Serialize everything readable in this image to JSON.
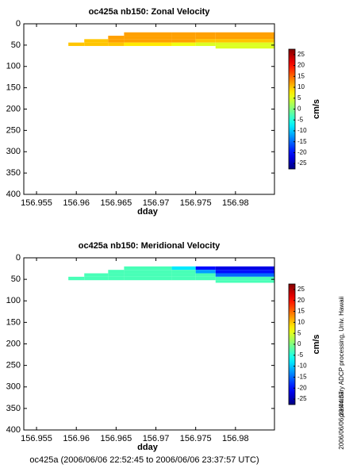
{
  "chart_data": [
    {
      "type": "heatmap",
      "title": "oc425a nb150: Zonal Velocity",
      "xlabel": "dday",
      "xlim": [
        156.9534,
        156.9849
      ],
      "xticks": [
        156.955,
        156.96,
        156.965,
        156.97,
        156.975,
        156.98
      ],
      "ylim": [
        0,
        400
      ],
      "yticks": [
        0,
        50,
        100,
        150,
        200,
        250,
        300,
        350,
        400
      ],
      "y_inverted": true,
      "clim": [
        -27.5,
        27.5
      ],
      "cticks": [
        25,
        20,
        15,
        10,
        5,
        0,
        -5,
        -10,
        -15,
        -20,
        -25
      ],
      "colorbar_label": "cm/s",
      "dday": [
        156.959,
        156.961,
        156.964,
        156.966,
        156.972,
        156.975,
        156.9775
      ],
      "depth_edges": [
        20,
        28,
        36,
        44,
        52,
        58
      ],
      "values": [
        [
          null,
          null,
          null,
          10,
          null
        ],
        [
          null,
          null,
          10,
          10,
          null
        ],
        [
          null,
          12,
          12,
          10,
          null
        ],
        [
          12,
          12,
          12,
          8,
          null
        ],
        [
          12,
          12,
          12,
          6,
          null
        ],
        [
          12,
          12,
          10,
          5,
          null
        ],
        [
          12,
          12,
          10,
          5,
          5
        ]
      ]
    },
    {
      "type": "heatmap",
      "title": "oc425a nb150: Meridional Velocity",
      "xlabel": "dday",
      "xlim": [
        156.9534,
        156.9849
      ],
      "xticks": [
        156.955,
        156.96,
        156.965,
        156.97,
        156.975,
        156.98
      ],
      "ylim": [
        0,
        400
      ],
      "yticks": [
        0,
        50,
        100,
        150,
        200,
        250,
        300,
        350,
        400
      ],
      "y_inverted": true,
      "clim": [
        -27.5,
        27.5
      ],
      "cticks": [
        25,
        20,
        15,
        10,
        5,
        0,
        -5,
        -10,
        -15,
        -20,
        -25
      ],
      "colorbar_label": "cm/s",
      "dday": [
        156.959,
        156.961,
        156.964,
        156.966,
        156.972,
        156.975,
        156.9775
      ],
      "depth_edges": [
        20,
        28,
        36,
        44,
        52,
        58
      ],
      "values": [
        [
          null,
          null,
          null,
          -3,
          null
        ],
        [
          null,
          null,
          -3,
          -3,
          null
        ],
        [
          null,
          -3,
          -3,
          -3,
          null
        ],
        [
          -3,
          -3,
          -3,
          -3,
          null
        ],
        [
          -8,
          -3,
          -3,
          -3,
          null
        ],
        [
          -20,
          -12,
          -3,
          -3,
          null
        ],
        [
          -22,
          -20,
          -15,
          -3,
          -3
        ]
      ]
    }
  ],
  "footer": "oc425a (2006/06/06 22:52:45 to 2006/06/06 23:37:57 UTC)",
  "side_note": "preliminary ADCP processing,   Univ. Hawaii",
  "timestamp": "2006/06/06 23:44:37"
}
